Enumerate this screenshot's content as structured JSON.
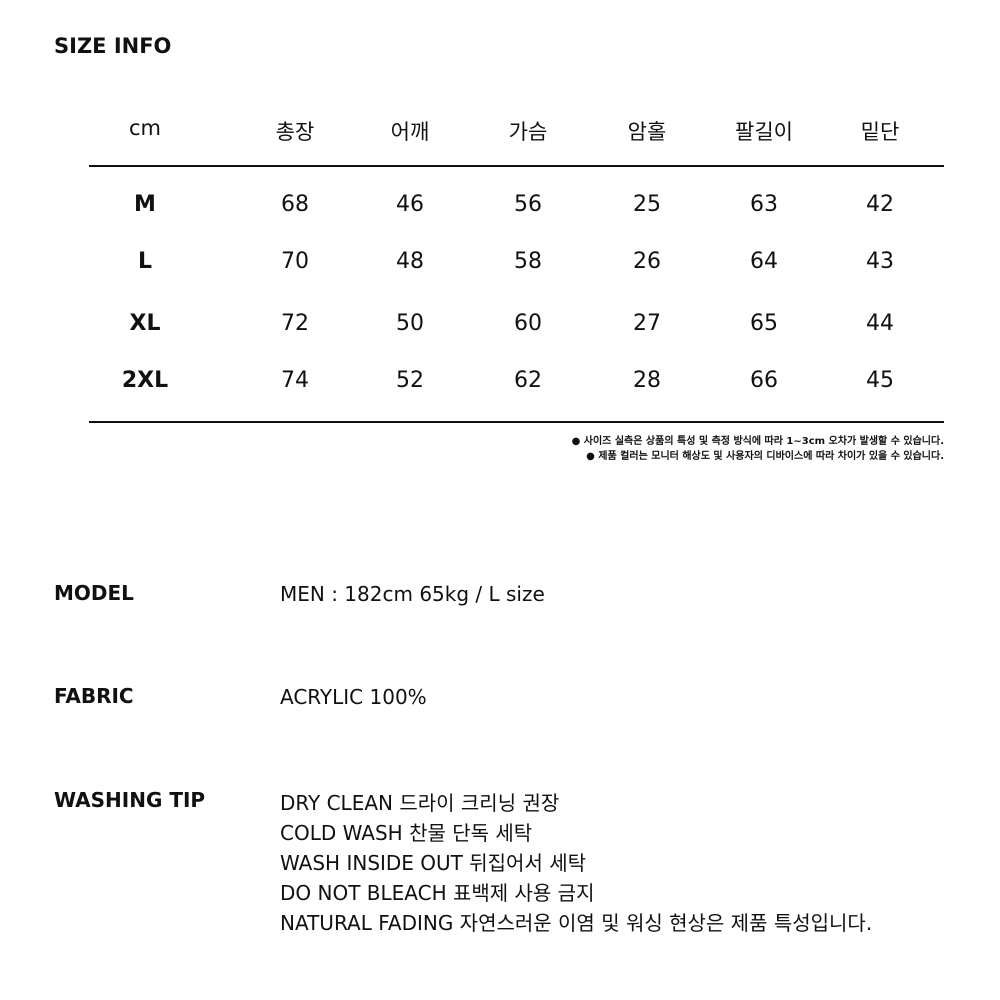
{
  "title": "SIZE INFO",
  "table": {
    "headers": [
      "cm",
      "총장",
      "어깨",
      "가슴",
      "암홀",
      "팔길이",
      "밑단"
    ],
    "rows": [
      [
        "M",
        "68",
        "46",
        "56",
        "25",
        "63",
        "42"
      ],
      [
        "L",
        "70",
        "48",
        "58",
        "26",
        "64",
        "43"
      ],
      [
        "XL",
        "72",
        "50",
        "60",
        "27",
        "65",
        "44"
      ],
      [
        "2XL",
        "74",
        "52",
        "62",
        "28",
        "66",
        "45"
      ]
    ]
  },
  "notes": [
    "● 사이즈 실측은 상품의 특성 및 측정 방식에 따라 1~3cm 오차가 발생할 수 있습니다.",
    "● 제품 컬러는 모니터 해상도 및 사용자의 디바이스에 따라 차이가 있을 수 있습니다."
  ],
  "model": {
    "label": "MODEL",
    "value": "MEN : 182cm 65kg / L size"
  },
  "fabric": {
    "label": "FABRIC",
    "value": "ACRYLIC 100%"
  },
  "washing": {
    "label": "WASHING TIP",
    "lines": [
      "DRY CLEAN 드라이 크리닝 권장",
      "COLD WASH 찬물 단독 세탁",
      "WASH INSIDE OUT 뒤집어서 세탁",
      "DO NOT BLEACH 표백제 사용 금지",
      "NATURAL FADING 자연스러운 이염 및 워싱 현상은 제품 특성입니다."
    ]
  }
}
